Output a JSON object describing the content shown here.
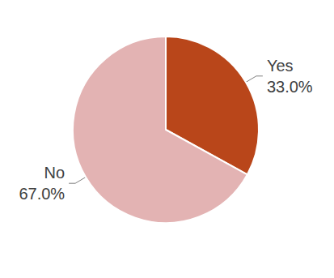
{
  "chart_data": {
    "type": "pie",
    "categories": [
      "Yes",
      "No"
    ],
    "values": [
      33.0,
      67.0
    ],
    "value_labels": [
      "33.0%",
      "67.0%"
    ],
    "colors": [
      "#b9461a",
      "#e3b3b3"
    ],
    "data_labels": true
  }
}
